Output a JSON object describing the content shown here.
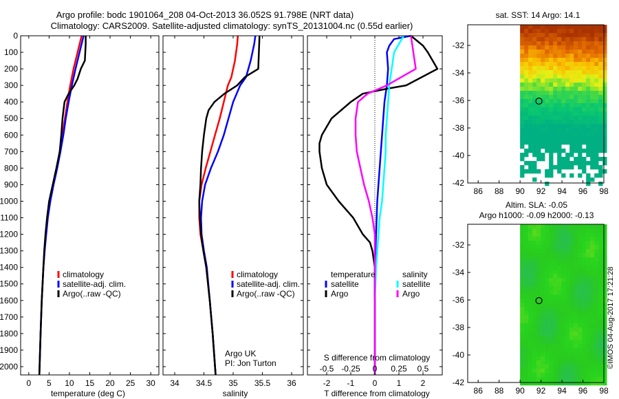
{
  "header": {
    "line1": "Argo profile: bodc 1901064_208 04-Oct-2013 36.052S 91.798E (NRT data)",
    "line2": "Climatology: CARS2009. Satellite-adjusted climatology: synTS_20131004.nc (0.55d earlier)"
  },
  "footer_stamp": "©IMOS 04-Aug-2017 17:21:28",
  "colors": {
    "climatology": "#ff0000",
    "satellite": "#0000ff",
    "argo": "#000000",
    "satellite_salinity": "#00ffff",
    "argo_salinity": "#ff00ff"
  },
  "chart_data": [
    {
      "id": "temperature_profile",
      "type": "line",
      "xlabel": "temperature (deg C)",
      "ylabel": "",
      "xlim": [
        -2,
        32
      ],
      "xticks": [
        0,
        5,
        10,
        15,
        20,
        25,
        30
      ],
      "xtick_labels": [
        "0",
        "5",
        "10",
        "15",
        "20",
        "25",
        "30"
      ],
      "ylim": [
        2050,
        0
      ],
      "yticks": [
        0,
        100,
        200,
        300,
        400,
        500,
        600,
        700,
        800,
        900,
        1000,
        1100,
        1200,
        1300,
        1400,
        1500,
        1600,
        1700,
        1800,
        1900,
        2000
      ],
      "ytick_labels": [
        "0",
        "100",
        "200",
        "300",
        "400",
        "500",
        "600",
        "700",
        "800",
        "900",
        "1000",
        "1100",
        "1200",
        "1300",
        "1400",
        "1500",
        "1600",
        "1700",
        "1800",
        "1900",
        "2000"
      ],
      "legend": [
        "climatology",
        "satellite-adj. clim.",
        "Argo(..raw -QC)"
      ],
      "series": [
        {
          "name": "climatology",
          "color": "#ff0000",
          "depth": [
            0,
            100,
            200,
            300,
            400,
            500,
            600,
            700,
            800,
            900,
            1000,
            1100,
            1200,
            1300,
            1400,
            1600,
            1800,
            2050
          ],
          "values": [
            13.0,
            12.0,
            11.0,
            10.2,
            9.5,
            8.9,
            8.3,
            7.7,
            6.9,
            6.0,
            5.2,
            4.6,
            4.2,
            3.9,
            3.6,
            3.2,
            2.9,
            2.6
          ]
        },
        {
          "name": "satellite-adj. clim.",
          "color": "#0000ff",
          "depth": [
            0,
            100,
            200,
            300,
            400,
            500,
            600,
            700,
            800,
            900,
            1000,
            1100,
            1200,
            1300,
            1400,
            1600,
            1800,
            2050
          ],
          "values": [
            13.5,
            12.5,
            11.5,
            10.6,
            9.8,
            9.1,
            8.5,
            7.8,
            7.0,
            6.1,
            5.3,
            4.7,
            4.3,
            3.9,
            3.6,
            3.2,
            2.9,
            2.6
          ]
        },
        {
          "name": "Argo(..raw -QC)",
          "color": "#000000",
          "depth": [
            0,
            50,
            150,
            200,
            260,
            300,
            350,
            400,
            500,
            600,
            700,
            800,
            900,
            1000,
            1100,
            1200,
            1300,
            1400,
            1600,
            1800,
            2050
          ],
          "values": [
            14.0,
            14.0,
            13.8,
            12.8,
            12.0,
            11.2,
            9.8,
            8.8,
            8.3,
            8.0,
            7.6,
            6.8,
            5.9,
            5.0,
            4.5,
            4.1,
            3.8,
            3.6,
            3.2,
            2.9,
            2.6
          ]
        }
      ]
    },
    {
      "id": "salinity_profile",
      "type": "line",
      "xlabel": "salinity",
      "xlim": [
        33.8,
        36.2
      ],
      "xticks": [
        34,
        34.5,
        35,
        35.5,
        36
      ],
      "xtick_labels": [
        "34",
        "34.5",
        "35",
        "35.5",
        "36"
      ],
      "ylim": [
        2050,
        0
      ],
      "legend": [
        "climatology",
        "satellite-adj. clim.",
        "Argo(..raw -QC)"
      ],
      "annotation": [
        "Argo UK",
        "PI: Jon Turton"
      ],
      "series": [
        {
          "name": "climatology",
          "color": "#ff0000",
          "depth": [
            0,
            50,
            150,
            250,
            300,
            400,
            500,
            600,
            700,
            800,
            900,
            1000,
            1100,
            1200,
            1300,
            1400,
            1600,
            1800,
            2050
          ],
          "values": [
            35.08,
            35.07,
            35.03,
            34.97,
            34.91,
            34.84,
            34.77,
            34.69,
            34.61,
            34.53,
            34.46,
            34.42,
            34.42,
            34.44,
            34.49,
            34.54,
            34.6,
            34.65,
            34.7
          ]
        },
        {
          "name": "satellite-adj. clim.",
          "color": "#0000ff",
          "depth": [
            0,
            50,
            150,
            250,
            300,
            400,
            500,
            600,
            700,
            800,
            900,
            1000,
            1100,
            1200,
            1300,
            1400,
            1600,
            1800,
            2050
          ],
          "values": [
            35.38,
            35.36,
            35.3,
            35.22,
            35.12,
            35.0,
            34.92,
            34.84,
            34.74,
            34.62,
            34.52,
            34.47,
            34.45,
            34.46,
            34.5,
            34.55,
            34.6,
            34.65,
            34.7
          ]
        },
        {
          "name": "Argo(..raw -QC)",
          "color": "#000000",
          "depth": [
            0,
            100,
            200,
            250,
            300,
            350,
            400,
            450,
            500,
            600,
            700,
            800,
            900,
            1000,
            1100,
            1200,
            1300,
            1400,
            1600,
            1800,
            2050
          ],
          "values": [
            35.45,
            35.44,
            35.43,
            35.2,
            35.07,
            34.85,
            34.68,
            34.58,
            34.54,
            34.5,
            34.47,
            34.45,
            34.44,
            34.42,
            34.43,
            34.45,
            34.49,
            34.54,
            34.6,
            34.65,
            34.7
          ]
        }
      ]
    },
    {
      "id": "difference_profile",
      "type": "line",
      "xlabel": "T difference from climatology",
      "xlabel_top": "S difference from climatology",
      "xlim": [
        -2.8,
        2.8
      ],
      "xticks": [
        -2,
        -1,
        0,
        1,
        2
      ],
      "xtick_labels": [
        "-2",
        "-1",
        "0",
        "1",
        "2"
      ],
      "xticks_s": [
        -2,
        -1,
        0,
        1,
        2
      ],
      "xtick_labels_s": [
        "-0.5",
        "-0.25",
        "0",
        "0.25",
        "0.5"
      ],
      "ylim": [
        2050,
        0
      ],
      "legend": {
        "temperature": "temperature",
        "salinity": "salinity",
        "entries": [
          "satellite",
          "Argo",
          "satellite",
          "Argo"
        ]
      },
      "series": [
        {
          "name": "temperature satellite",
          "color": "#0000ff",
          "depth": [
            0,
            20,
            60,
            100,
            200,
            300,
            400,
            600,
            800,
            1000,
            1200,
            1400,
            1700,
            2050
          ],
          "values": [
            1.5,
            0.8,
            0.6,
            0.5,
            0.55,
            0.5,
            0.4,
            0.3,
            0.2,
            0.1,
            0.05,
            0.0,
            0.0,
            0.0
          ]
        },
        {
          "name": "temperature Argo",
          "color": "#000000",
          "depth": [
            0,
            60,
            100,
            200,
            300,
            320,
            350,
            400,
            500,
            600,
            650,
            700,
            800,
            900,
            1000,
            1100,
            1200,
            1250,
            1300,
            1400,
            1600,
            1800,
            2050
          ],
          "values": [
            1.5,
            2.0,
            2.2,
            2.6,
            1.3,
            0.5,
            -0.5,
            -1.0,
            -1.8,
            -2.2,
            -2.3,
            -2.3,
            -2.2,
            -2.0,
            -1.5,
            -0.9,
            -0.5,
            -0.2,
            -0.1,
            0.0,
            0.0,
            0.0,
            0.0
          ]
        },
        {
          "name": "salinity satellite",
          "color": "#00ffff",
          "depth": [
            0,
            100,
            200,
            300,
            400,
            500,
            600,
            700,
            800,
            900,
            1000,
            1100,
            1200,
            1300,
            1400,
            1600,
            1800,
            2050
          ],
          "values": [
            1.2,
            0.8,
            0.7,
            0.6,
            0.55,
            0.5,
            0.45,
            0.45,
            0.4,
            0.35,
            0.3,
            0.2,
            0.15,
            0.1,
            0.05,
            0.0,
            0.0,
            0.0
          ]
        },
        {
          "name": "salinity Argo",
          "color": "#ff00ff",
          "depth": [
            0,
            100,
            200,
            300,
            350,
            400,
            500,
            600,
            700,
            800,
            900,
            1000,
            1100,
            1200,
            1300,
            1400,
            1600,
            1800,
            2050
          ],
          "values": [
            1.5,
            1.6,
            1.7,
            0.5,
            -0.3,
            -0.7,
            -0.8,
            -0.8,
            -0.75,
            -0.6,
            -0.45,
            -0.25,
            -0.1,
            0.0,
            0.0,
            0.0,
            0.0,
            0.0,
            0.0
          ]
        }
      ]
    },
    {
      "id": "sst_map",
      "type": "heatmap",
      "title": "sat. SST: 14  Argo: 14.1",
      "xlim": [
        85,
        98
      ],
      "ylim": [
        -42,
        -30.5
      ],
      "xticks": [
        86,
        88,
        90,
        92,
        94,
        96,
        98
      ],
      "xtick_labels": [
        "86",
        "88",
        "90",
        "92",
        "94",
        "96",
        "98"
      ],
      "yticks": [
        -32,
        -34,
        -36,
        -38,
        -40,
        -42
      ],
      "ytick_labels": [
        "-32",
        "-34",
        "-36",
        "-38",
        "-40",
        "-42"
      ],
      "data_xrange": [
        90,
        98
      ],
      "marker": {
        "lon": 91.8,
        "lat": -36.05
      }
    },
    {
      "id": "sla_map",
      "type": "heatmap",
      "title": "Altim. SLA: -0.05",
      "subtitle": "Argo h1000: -0.09 h2000: -0.13",
      "xlim": [
        85,
        98
      ],
      "ylim": [
        -42,
        -30.5
      ],
      "xticks": [
        86,
        88,
        90,
        92,
        94,
        96,
        98
      ],
      "xtick_labels": [
        "86",
        "88",
        "90",
        "92",
        "94",
        "96",
        "98"
      ],
      "yticks": [
        -32,
        -34,
        -36,
        -38,
        -40,
        -42
      ],
      "ytick_labels": [
        "-32",
        "-34",
        "-36",
        "-38",
        "-40",
        "-42"
      ],
      "data_xrange": [
        90,
        98
      ],
      "marker": {
        "lon": 91.8,
        "lat": -36.05
      }
    }
  ]
}
